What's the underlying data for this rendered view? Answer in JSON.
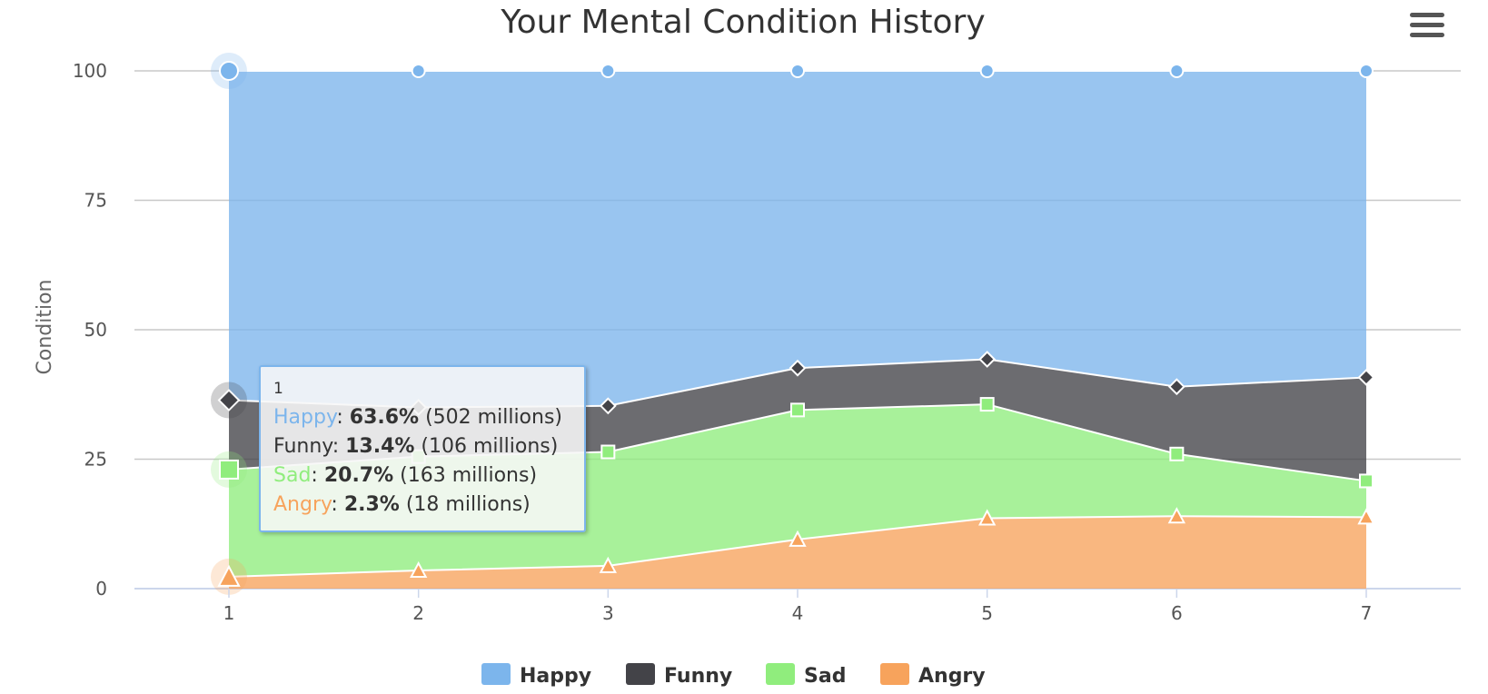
{
  "chart_data": {
    "type": "area",
    "stacking": "percent",
    "title": "Your Mental Condition History",
    "ylabel": "Condition",
    "ylim": [
      0,
      100
    ],
    "yticks": [
      "0",
      "25",
      "50",
      "75",
      "100"
    ],
    "categories": [
      "1",
      "2",
      "3",
      "4",
      "5",
      "6",
      "7"
    ],
    "grid": true,
    "legend_position": "bottom-center",
    "series": [
      {
        "name": "Happy",
        "color": "#7cb5ec",
        "marker": "circle",
        "values": [
          63.6,
          65.0,
          64.7,
          57.4,
          55.7,
          61.0,
          59.2
        ]
      },
      {
        "name": "Funny",
        "color": "#434348",
        "marker": "diamond",
        "values": [
          13.4,
          9.5,
          8.9,
          8.1,
          8.7,
          13.0,
          20.0
        ]
      },
      {
        "name": "Sad",
        "color": "#90ed7d",
        "marker": "square",
        "values": [
          20.7,
          22.0,
          22.0,
          25.0,
          22.0,
          12.0,
          7.0
        ]
      },
      {
        "name": "Angry",
        "color": "#f7a35c",
        "marker": "triangle",
        "values": [
          2.3,
          3.5,
          4.4,
          9.5,
          13.6,
          14.0,
          13.8
        ]
      }
    ]
  },
  "tooltip": {
    "header": "1",
    "rows": [
      {
        "name": "Happy",
        "color": "#7cb5ec",
        "value": "63.6%",
        "extra": "(502 millions)"
      },
      {
        "name": "Funny",
        "color": "#333333",
        "value": "13.4%",
        "extra": "(106 millions)"
      },
      {
        "name": "Sad",
        "color": "#90ed7d",
        "value": "20.7%",
        "extra": "(163 millions)"
      },
      {
        "name": "Angry",
        "color": "#f7a35c",
        "value": "2.3%",
        "extra": "(18 millions)"
      }
    ]
  },
  "menu": {
    "icon": "hamburger-menu-icon"
  }
}
